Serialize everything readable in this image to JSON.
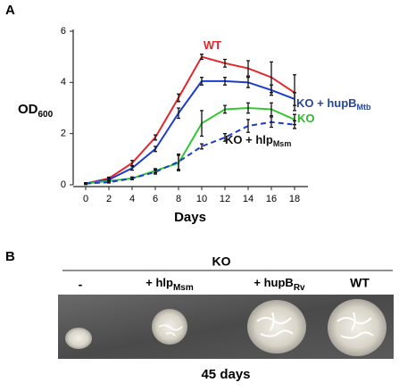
{
  "chart_data": {
    "type": "line",
    "panel_label": "A",
    "x_label": "Days",
    "y_label": "OD",
    "y_label_subscript": "600",
    "x": [
      0,
      2,
      4,
      6,
      8,
      10,
      12,
      14,
      16,
      18
    ],
    "xlim": [
      0,
      18
    ],
    "xticks": [
      0,
      2,
      4,
      6,
      8,
      10,
      12,
      14,
      16,
      18
    ],
    "ylim": [
      0,
      6
    ],
    "yticks": [
      0,
      2,
      4,
      6
    ],
    "series": [
      {
        "name": "WT",
        "color": "#e3262c",
        "label_color": "#e3262c",
        "dash": false,
        "values": [
          0.05,
          0.25,
          0.85,
          1.85,
          3.4,
          5.0,
          4.75,
          4.55,
          4.2,
          3.6
        ],
        "errors": [
          0.03,
          0.05,
          0.1,
          0.1,
          0.15,
          0.1,
          0.15,
          0.3,
          0.6,
          0.7
        ]
      },
      {
        "name": "KO + hupB",
        "name_subscript": "Mtb",
        "color": "#1c3ccc",
        "label_color": "#27479a",
        "dash": false,
        "values": [
          0.05,
          0.2,
          0.65,
          1.4,
          2.8,
          4.05,
          4.05,
          4.0,
          3.7,
          3.35
        ],
        "errors": [
          0.03,
          0.05,
          0.08,
          0.1,
          0.2,
          0.15,
          0.15,
          0.2,
          0.2,
          0.25
        ]
      },
      {
        "name": "KO",
        "color": "#33c833",
        "label_color": "#2fb82f",
        "dash": false,
        "values": [
          0.05,
          0.15,
          0.25,
          0.55,
          0.85,
          2.4,
          2.95,
          3.0,
          2.95,
          2.55
        ],
        "errors": [
          0.03,
          0.03,
          0.05,
          0.08,
          0.3,
          0.5,
          0.15,
          0.2,
          0.25,
          0.2
        ]
      },
      {
        "name": "KO + hlp",
        "name_subscript": "Msm",
        "color": "#1c3ccc",
        "label_color": "#111111",
        "dash": true,
        "values": [
          0.05,
          0.1,
          0.25,
          0.5,
          0.9,
          1.5,
          1.85,
          2.3,
          2.45,
          2.35
        ],
        "errors": [
          0.03,
          0.03,
          0.05,
          0.08,
          0.3,
          0.1,
          0.15,
          0.25,
          0.2,
          0.15
        ]
      }
    ]
  },
  "panel_b": {
    "panel_label": "B",
    "group_label": "KO",
    "columns": [
      {
        "label": "-"
      },
      {
        "label": "+ hlp",
        "subscript": "Msm"
      },
      {
        "label": "+ hupB",
        "subscript": "Rv"
      },
      {
        "label": "WT"
      }
    ],
    "caption": "45 days"
  }
}
